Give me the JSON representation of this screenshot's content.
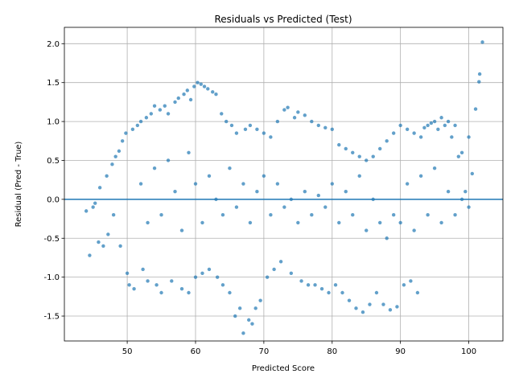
{
  "chart_data": {
    "type": "scatter",
    "title": "Residuals vs Predicted (Test)",
    "xlabel": "Predicted Score",
    "ylabel": "Residual (Pred - True)",
    "xlim": [
      40.8,
      105.0
    ],
    "ylim": [
      -1.82,
      2.21
    ],
    "xticks": [
      50,
      60,
      70,
      80,
      90,
      100
    ],
    "yticks": [
      -1.5,
      -1.0,
      -0.5,
      0.0,
      0.5,
      1.0,
      1.5,
      2.0
    ],
    "grid": true,
    "reference_line": {
      "y": 0.0,
      "color": "#1f77b4"
    },
    "point_color": "#1f77b4",
    "point_alpha": 0.7,
    "series": [
      {
        "points": [
          [
            44,
            -0.15
          ],
          [
            44.5,
            -0.72
          ],
          [
            45,
            -0.1
          ],
          [
            45.3,
            -0.05
          ],
          [
            45.8,
            -0.55
          ],
          [
            46,
            0.15
          ],
          [
            46.5,
            -0.6
          ],
          [
            47,
            0.3
          ],
          [
            47.2,
            -0.45
          ],
          [
            47.8,
            0.45
          ],
          [
            48,
            -0.2
          ],
          [
            48.3,
            0.55
          ],
          [
            48.8,
            0.62
          ],
          [
            49,
            -0.6
          ],
          [
            49.3,
            0.75
          ],
          [
            49.8,
            0.85
          ],
          [
            50,
            -0.95
          ],
          [
            50.3,
            -1.1
          ],
          [
            50.8,
            0.9
          ],
          [
            51,
            -1.15
          ],
          [
            51.5,
            0.95
          ],
          [
            52,
            1.0
          ],
          [
            52.3,
            -0.9
          ],
          [
            52.8,
            1.05
          ],
          [
            53,
            -1.05
          ],
          [
            53.5,
            1.1
          ],
          [
            54,
            1.2
          ],
          [
            54.3,
            -1.1
          ],
          [
            54.8,
            1.15
          ],
          [
            55,
            -1.2
          ],
          [
            55.5,
            1.2
          ],
          [
            56,
            1.1
          ],
          [
            56.5,
            -1.05
          ],
          [
            57,
            1.25
          ],
          [
            57.5,
            1.3
          ],
          [
            58,
            -1.15
          ],
          [
            58.3,
            1.35
          ],
          [
            58.8,
            1.4
          ],
          [
            59,
            -1.2
          ],
          [
            59.3,
            1.28
          ],
          [
            59.8,
            1.45
          ],
          [
            60,
            -1.0
          ],
          [
            60.3,
            1.5
          ],
          [
            60.8,
            1.48
          ],
          [
            61,
            -0.95
          ],
          [
            61.3,
            1.45
          ],
          [
            61.8,
            1.42
          ],
          [
            62,
            -0.9
          ],
          [
            62.5,
            1.38
          ],
          [
            63,
            1.35
          ],
          [
            63.2,
            -1.0
          ],
          [
            63.8,
            1.1
          ],
          [
            64,
            -1.1
          ],
          [
            64.5,
            1.0
          ],
          [
            65,
            -1.2
          ],
          [
            65.3,
            0.95
          ],
          [
            65.8,
            -1.5
          ],
          [
            66,
            0.85
          ],
          [
            66.5,
            -1.4
          ],
          [
            67,
            -1.72
          ],
          [
            67.3,
            0.9
          ],
          [
            67.8,
            -1.55
          ],
          [
            68,
            0.95
          ],
          [
            68.3,
            -1.6
          ],
          [
            68.8,
            -1.4
          ],
          [
            69,
            0.9
          ],
          [
            69.5,
            -1.3
          ],
          [
            70,
            0.85
          ],
          [
            70.5,
            -1.0
          ],
          [
            71,
            0.8
          ],
          [
            71.5,
            -0.9
          ],
          [
            72,
            1.0
          ],
          [
            72.5,
            -0.8
          ],
          [
            73,
            1.15
          ],
          [
            73.5,
            1.18
          ],
          [
            74,
            -0.95
          ],
          [
            74.5,
            1.05
          ],
          [
            75,
            1.12
          ],
          [
            75.5,
            -1.05
          ],
          [
            76,
            1.08
          ],
          [
            76.5,
            -1.1
          ],
          [
            77,
            1.0
          ],
          [
            77.5,
            -1.1
          ],
          [
            78,
            0.95
          ],
          [
            78.5,
            -1.15
          ],
          [
            79,
            0.92
          ],
          [
            79.5,
            -1.2
          ],
          [
            80,
            0.9
          ],
          [
            80.5,
            -1.1
          ],
          [
            81,
            0.7
          ],
          [
            81.5,
            -1.2
          ],
          [
            82,
            0.65
          ],
          [
            82.5,
            -1.3
          ],
          [
            83,
            0.6
          ],
          [
            83.5,
            -1.4
          ],
          [
            84,
            0.55
          ],
          [
            84.5,
            -1.45
          ],
          [
            85,
            0.5
          ],
          [
            85.5,
            -1.35
          ],
          [
            86,
            0.55
          ],
          [
            86.5,
            -1.2
          ],
          [
            87,
            0.65
          ],
          [
            87.5,
            -1.35
          ],
          [
            88,
            0.75
          ],
          [
            88.5,
            -1.42
          ],
          [
            89,
            0.85
          ],
          [
            89.5,
            -1.38
          ],
          [
            90,
            0.95
          ],
          [
            90.5,
            -1.1
          ],
          [
            91,
            0.9
          ],
          [
            91.5,
            -1.05
          ],
          [
            92,
            0.85
          ],
          [
            92.5,
            -1.2
          ],
          [
            93,
            0.8
          ],
          [
            93.5,
            0.92
          ],
          [
            94,
            0.95
          ],
          [
            94.5,
            0.98
          ],
          [
            95,
            1.0
          ],
          [
            95.5,
            0.9
          ],
          [
            96,
            1.05
          ],
          [
            96.5,
            0.95
          ],
          [
            97,
            1.0
          ],
          [
            97.5,
            0.8
          ],
          [
            98,
            0.95
          ],
          [
            98.5,
            0.55
          ],
          [
            99,
            0.6
          ],
          [
            99.5,
            0.1
          ],
          [
            100,
            0.8
          ],
          [
            100.5,
            0.33
          ],
          [
            101,
            1.16
          ],
          [
            101.5,
            1.51
          ],
          [
            101.6,
            1.61
          ],
          [
            102,
            2.02
          ],
          [
            52,
            0.2
          ],
          [
            53,
            -0.3
          ],
          [
            54,
            0.4
          ],
          [
            55,
            -0.2
          ],
          [
            56,
            0.5
          ],
          [
            57,
            0.1
          ],
          [
            58,
            -0.4
          ],
          [
            59,
            0.6
          ],
          [
            60,
            0.2
          ],
          [
            61,
            -0.3
          ],
          [
            62,
            0.3
          ],
          [
            63,
            0.0
          ],
          [
            64,
            -0.2
          ],
          [
            65,
            0.4
          ],
          [
            66,
            -0.1
          ],
          [
            67,
            0.2
          ],
          [
            68,
            -0.3
          ],
          [
            69,
            0.1
          ],
          [
            70,
            0.3
          ],
          [
            71,
            -0.2
          ],
          [
            72,
            0.2
          ],
          [
            73,
            -0.1
          ],
          [
            74,
            0.0
          ],
          [
            75,
            -0.3
          ],
          [
            76,
            0.1
          ],
          [
            77,
            -0.2
          ],
          [
            78,
            0.05
          ],
          [
            79,
            -0.1
          ],
          [
            80,
            0.2
          ],
          [
            81,
            -0.3
          ],
          [
            82,
            0.1
          ],
          [
            83,
            -0.2
          ],
          [
            84,
            0.3
          ],
          [
            85,
            -0.4
          ],
          [
            86,
            0.0
          ],
          [
            87,
            -0.3
          ],
          [
            88,
            -0.5
          ],
          [
            89,
            -0.2
          ],
          [
            90,
            -0.3
          ],
          [
            91,
            0.2
          ],
          [
            92,
            -0.4
          ],
          [
            93,
            0.3
          ],
          [
            94,
            -0.2
          ],
          [
            95,
            0.4
          ],
          [
            96,
            -0.3
          ],
          [
            97,
            0.1
          ],
          [
            98,
            -0.2
          ],
          [
            99,
            0.0
          ],
          [
            100,
            -0.1
          ]
        ]
      }
    ]
  }
}
